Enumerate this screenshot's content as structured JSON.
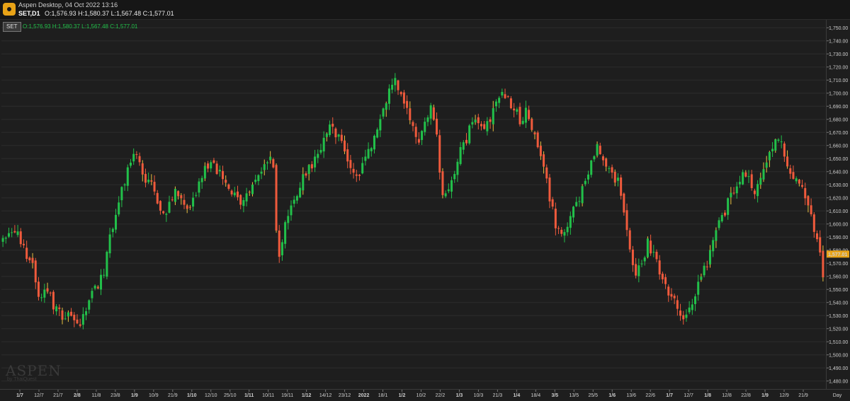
{
  "app": {
    "title": "Aspen Desktop, 04 Oct 2022 13:16",
    "symbol": "SET,D1",
    "ohlc_text": "O:1,576.93 H:1,580.37 L:1,567.48 C:1,577.01"
  },
  "legend": {
    "tag": "SET",
    "values": "O:1,576.93 H:1,580.37 L:1,567.48 C:1,577.01"
  },
  "watermark": {
    "main": "ASPEN",
    "sub": "by ThaiQuest"
  },
  "colors": {
    "up": "#22c04a",
    "down": "#ef5a3c",
    "background": "#1e1e1e",
    "grid": "#2c2c2c",
    "price_label": "#e8a317"
  },
  "chart_data": {
    "type": "candlestick",
    "title": "SET,D1",
    "ylim": [
      1475,
      1755
    ],
    "grid": true,
    "y_ticks": [
      "1,750.00",
      "1,740.00",
      "1,730.00",
      "1,720.00",
      "1,710.00",
      "1,700.00",
      "1,690.00",
      "1,680.00",
      "1,670.00",
      "1,660.00",
      "1,650.00",
      "1,640.00",
      "1,630.00",
      "1,620.00",
      "1,610.00",
      "1,600.00",
      "1,590.00",
      "1,580.00",
      "1,570.00",
      "1,560.00",
      "1,550.00",
      "1,540.00",
      "1,530.00",
      "1,520.00",
      "1,510.00",
      "1,500.00",
      "1,490.00",
      "1,480.00"
    ],
    "x_ticks": [
      {
        "label": "1/7",
        "bold": true
      },
      {
        "label": "12/7",
        "bold": false
      },
      {
        "label": "21/7",
        "bold": false
      },
      {
        "label": "2/8",
        "bold": true
      },
      {
        "label": "11/8",
        "bold": false
      },
      {
        "label": "23/8",
        "bold": false
      },
      {
        "label": "1/9",
        "bold": true
      },
      {
        "label": "10/9",
        "bold": false
      },
      {
        "label": "21/9",
        "bold": false
      },
      {
        "label": "1/10",
        "bold": true
      },
      {
        "label": "12/10",
        "bold": false
      },
      {
        "label": "25/10",
        "bold": false
      },
      {
        "label": "1/11",
        "bold": true
      },
      {
        "label": "10/11",
        "bold": false
      },
      {
        "label": "19/11",
        "bold": false
      },
      {
        "label": "1/12",
        "bold": true
      },
      {
        "label": "14/12",
        "bold": false
      },
      {
        "label": "23/12",
        "bold": false
      },
      {
        "label": "2022",
        "bold": true
      },
      {
        "label": "18/1",
        "bold": false
      },
      {
        "label": "1/2",
        "bold": true
      },
      {
        "label": "10/2",
        "bold": false
      },
      {
        "label": "22/2",
        "bold": false
      },
      {
        "label": "1/3",
        "bold": true
      },
      {
        "label": "10/3",
        "bold": false
      },
      {
        "label": "21/3",
        "bold": false
      },
      {
        "label": "1/4",
        "bold": true
      },
      {
        "label": "18/4",
        "bold": false
      },
      {
        "label": "3/5",
        "bold": true
      },
      {
        "label": "13/5",
        "bold": false
      },
      {
        "label": "25/5",
        "bold": false
      },
      {
        "label": "1/6",
        "bold": true
      },
      {
        "label": "13/6",
        "bold": false
      },
      {
        "label": "22/6",
        "bold": false
      },
      {
        "label": "1/7",
        "bold": true
      },
      {
        "label": "12/7",
        "bold": false
      },
      {
        "label": "1/8",
        "bold": true
      },
      {
        "label": "12/8",
        "bold": false
      },
      {
        "label": "22/8",
        "bold": false
      },
      {
        "label": "1/9",
        "bold": true
      },
      {
        "label": "12/9",
        "bold": false
      },
      {
        "label": "21/9",
        "bold": false
      }
    ],
    "period_label": "Day",
    "last_price": "1,577.01",
    "close_path": [
      [
        0,
        1588
      ],
      [
        4,
        1595
      ],
      [
        7,
        1582
      ],
      [
        10,
        1568
      ],
      [
        12,
        1545
      ],
      [
        15,
        1552
      ],
      [
        17,
        1538
      ],
      [
        20,
        1528
      ],
      [
        22,
        1535
      ],
      [
        25,
        1522
      ],
      [
        27,
        1530
      ],
      [
        30,
        1548
      ],
      [
        32,
        1552
      ],
      [
        34,
        1565
      ],
      [
        36,
        1590
      ],
      [
        38,
        1605
      ],
      [
        40,
        1628
      ],
      [
        42,
        1640
      ],
      [
        44,
        1652
      ],
      [
        46,
        1648
      ],
      [
        48,
        1635
      ],
      [
        50,
        1630
      ],
      [
        52,
        1615
      ],
      [
        54,
        1605
      ],
      [
        56,
        1615
      ],
      [
        58,
        1625
      ],
      [
        60,
        1618
      ],
      [
        62,
        1608
      ],
      [
        64,
        1620
      ],
      [
        66,
        1630
      ],
      [
        68,
        1642
      ],
      [
        70,
        1648
      ],
      [
        72,
        1640
      ],
      [
        74,
        1635
      ],
      [
        76,
        1630
      ],
      [
        78,
        1622
      ],
      [
        80,
        1615
      ],
      [
        82,
        1620
      ],
      [
        84,
        1630
      ],
      [
        86,
        1638
      ],
      [
        88,
        1645
      ],
      [
        90,
        1650
      ],
      [
        91,
        1645
      ],
      [
        92,
        1595
      ],
      [
        93,
        1575
      ],
      [
        94,
        1590
      ],
      [
        96,
        1610
      ],
      [
        98,
        1620
      ],
      [
        100,
        1630
      ],
      [
        102,
        1640
      ],
      [
        104,
        1645
      ],
      [
        106,
        1655
      ],
      [
        108,
        1665
      ],
      [
        110,
        1675
      ],
      [
        112,
        1670
      ],
      [
        114,
        1660
      ],
      [
        116,
        1648
      ],
      [
        118,
        1640
      ],
      [
        120,
        1638
      ],
      [
        122,
        1650
      ],
      [
        124,
        1662
      ],
      [
        126,
        1675
      ],
      [
        128,
        1688
      ],
      [
        130,
        1700
      ],
      [
        132,
        1710
      ],
      [
        134,
        1700
      ],
      [
        136,
        1690
      ],
      [
        138,
        1672
      ],
      [
        140,
        1660
      ],
      [
        142,
        1680
      ],
      [
        144,
        1690
      ],
      [
        146,
        1665
      ],
      [
        148,
        1620
      ],
      [
        150,
        1625
      ],
      [
        152,
        1640
      ],
      [
        154,
        1655
      ],
      [
        156,
        1665
      ],
      [
        158,
        1678
      ],
      [
        160,
        1680
      ],
      [
        162,
        1676
      ],
      [
        164,
        1682
      ],
      [
        166,
        1695
      ],
      [
        168,
        1702
      ],
      [
        170,
        1695
      ],
      [
        172,
        1688
      ],
      [
        174,
        1680
      ],
      [
        176,
        1685
      ],
      [
        178,
        1675
      ],
      [
        180,
        1660
      ],
      [
        182,
        1645
      ],
      [
        184,
        1620
      ],
      [
        186,
        1600
      ],
      [
        188,
        1590
      ],
      [
        190,
        1598
      ],
      [
        192,
        1610
      ],
      [
        194,
        1620
      ],
      [
        196,
        1630
      ],
      [
        198,
        1645
      ],
      [
        200,
        1658
      ],
      [
        202,
        1650
      ],
      [
        204,
        1640
      ],
      [
        206,
        1632
      ],
      [
        207,
        1632
      ],
      [
        209,
        1605
      ],
      [
        211,
        1580
      ],
      [
        213,
        1562
      ],
      [
        215,
        1570
      ],
      [
        217,
        1585
      ],
      [
        219,
        1575
      ],
      [
        221,
        1565
      ],
      [
        223,
        1552
      ],
      [
        225,
        1545
      ],
      [
        227,
        1535
      ],
      [
        229,
        1528
      ],
      [
        231,
        1535
      ],
      [
        233,
        1545
      ],
      [
        235,
        1560
      ],
      [
        237,
        1570
      ],
      [
        239,
        1590
      ],
      [
        241,
        1600
      ],
      [
        243,
        1610
      ],
      [
        245,
        1622
      ],
      [
        247,
        1632
      ],
      [
        249,
        1640
      ],
      [
        251,
        1636
      ],
      [
        253,
        1625
      ],
      [
        255,
        1632
      ],
      [
        257,
        1645
      ],
      [
        259,
        1660
      ],
      [
        261,
        1668
      ],
      [
        263,
        1655
      ],
      [
        265,
        1640
      ],
      [
        267,
        1635
      ],
      [
        269,
        1625
      ],
      [
        271,
        1612
      ],
      [
        273,
        1595
      ],
      [
        275,
        1580
      ],
      [
        276,
        1562
      ]
    ],
    "total_bars": 277
  }
}
